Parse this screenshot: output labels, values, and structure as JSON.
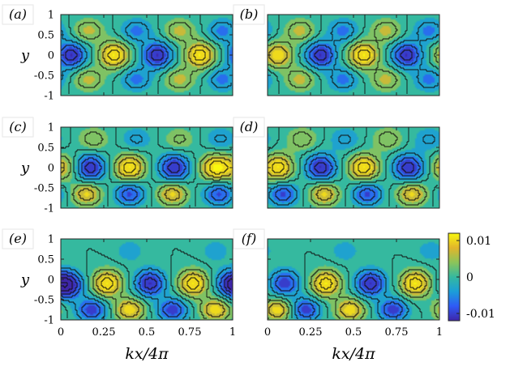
{
  "figure": {
    "colorbar": {
      "max_label": "0.01",
      "mid_label": "0",
      "min_label": "-0.01",
      "range": [
        -0.012,
        0.012
      ],
      "colormap": [
        "#3e26a8",
        "#2f5af6",
        "#1b9ed8",
        "#35b99f",
        "#8cc45a",
        "#e2b52b",
        "#f9f80f"
      ]
    },
    "contour_line_color": "#111111"
  },
  "chart_data": [
    {
      "type": "heatmap",
      "panel_label": "(a)",
      "xlabel": "",
      "ylabel": "y",
      "xlim": [
        0,
        1
      ],
      "ylim": [
        -1,
        1
      ],
      "yticks": [
        "1",
        "0.5",
        "0",
        "-0.5",
        "-1"
      ],
      "xticks": [],
      "description_of_pattern": "",
      "centers": [
        {
          "x": 0.06,
          "y": 0.0,
          "v": -0.012
        },
        {
          "x": 0.31,
          "y": 0.0,
          "v": 0.012
        },
        {
          "x": 0.56,
          "y": 0.0,
          "v": -0.012
        },
        {
          "x": 0.81,
          "y": 0.0,
          "v": 0.012
        },
        {
          "x": 0.16,
          "y": 0.6,
          "v": 0.006
        },
        {
          "x": 0.44,
          "y": 0.6,
          "v": -0.006
        },
        {
          "x": 0.69,
          "y": 0.6,
          "v": 0.006
        },
        {
          "x": 0.94,
          "y": 0.6,
          "v": -0.006
        },
        {
          "x": 0.16,
          "y": -0.6,
          "v": 0.006
        },
        {
          "x": 0.44,
          "y": -0.6,
          "v": -0.006
        },
        {
          "x": 0.69,
          "y": -0.6,
          "v": 0.006
        },
        {
          "x": 0.94,
          "y": -0.6,
          "v": -0.006
        }
      ]
    },
    {
      "type": "heatmap",
      "panel_label": "(b)",
      "xlabel": "",
      "ylabel": "",
      "xlim": [
        0,
        1
      ],
      "ylim": [
        -1,
        1
      ],
      "yticks": [],
      "xticks": [],
      "centers": [
        {
          "x": 0.06,
          "y": 0.0,
          "v": 0.01
        },
        {
          "x": 0.31,
          "y": 0.0,
          "v": -0.012
        },
        {
          "x": 0.56,
          "y": 0.0,
          "v": 0.012
        },
        {
          "x": 0.81,
          "y": 0.0,
          "v": -0.012
        },
        {
          "x": 0.19,
          "y": 0.6,
          "v": 0.006
        },
        {
          "x": 0.44,
          "y": 0.6,
          "v": -0.006
        },
        {
          "x": 0.69,
          "y": 0.6,
          "v": 0.006
        },
        {
          "x": 0.94,
          "y": 0.6,
          "v": -0.006
        },
        {
          "x": 0.19,
          "y": -0.6,
          "v": 0.006
        },
        {
          "x": 0.44,
          "y": -0.6,
          "v": -0.006
        },
        {
          "x": 0.69,
          "y": -0.6,
          "v": 0.006
        },
        {
          "x": 0.94,
          "y": -0.6,
          "v": -0.006
        }
      ]
    },
    {
      "type": "heatmap",
      "panel_label": "(c)",
      "xlabel": "",
      "ylabel": "y",
      "xlim": [
        0,
        1
      ],
      "ylim": [
        -1,
        1
      ],
      "yticks": [
        "1",
        "0.5",
        "0",
        "-0.5",
        "-1"
      ],
      "xticks": [],
      "centers": [
        {
          "x": 0.02,
          "y": 0.0,
          "v": 0.006
        },
        {
          "x": 0.17,
          "y": 0.0,
          "v": -0.012
        },
        {
          "x": 0.4,
          "y": 0.0,
          "v": 0.012
        },
        {
          "x": 0.66,
          "y": 0.0,
          "v": -0.012
        },
        {
          "x": 0.9,
          "y": 0.0,
          "v": 0.012
        },
        {
          "x": 0.19,
          "y": 0.7,
          "v": 0.005
        },
        {
          "x": 0.44,
          "y": 0.7,
          "v": -0.004
        },
        {
          "x": 0.69,
          "y": 0.7,
          "v": 0.004
        },
        {
          "x": 0.93,
          "y": 0.7,
          "v": -0.004
        },
        {
          "x": 0.15,
          "y": -0.65,
          "v": 0.009
        },
        {
          "x": 0.4,
          "y": -0.65,
          "v": -0.009
        },
        {
          "x": 0.65,
          "y": -0.65,
          "v": 0.009
        },
        {
          "x": 0.92,
          "y": -0.65,
          "v": -0.009
        }
      ]
    },
    {
      "type": "heatmap",
      "panel_label": "(d)",
      "xlabel": "",
      "ylabel": "",
      "xlim": [
        0,
        1
      ],
      "ylim": [
        -1,
        1
      ],
      "yticks": [],
      "xticks": [],
      "centers": [
        {
          "x": 0.06,
          "y": 0.0,
          "v": 0.012
        },
        {
          "x": 0.31,
          "y": 0.0,
          "v": -0.012
        },
        {
          "x": 0.56,
          "y": 0.0,
          "v": 0.012
        },
        {
          "x": 0.82,
          "y": 0.0,
          "v": -0.012
        },
        {
          "x": 0.2,
          "y": 0.7,
          "v": 0.005
        },
        {
          "x": 0.45,
          "y": 0.7,
          "v": -0.004
        },
        {
          "x": 0.7,
          "y": 0.7,
          "v": 0.005
        },
        {
          "x": 0.94,
          "y": 0.7,
          "v": -0.004
        },
        {
          "x": 0.09,
          "y": -0.65,
          "v": -0.009
        },
        {
          "x": 0.33,
          "y": -0.65,
          "v": 0.009
        },
        {
          "x": 0.58,
          "y": -0.65,
          "v": -0.009
        },
        {
          "x": 0.84,
          "y": -0.65,
          "v": 0.009
        }
      ]
    },
    {
      "type": "heatmap",
      "panel_label": "(e)",
      "xlabel": "kx/4π",
      "ylabel": "y",
      "xlim": [
        0,
        1
      ],
      "ylim": [
        -1,
        1
      ],
      "yticks": [
        "1",
        "0.5",
        "0",
        "-0.5",
        "-1"
      ],
      "xticks": [
        "0",
        "0.25",
        "0.5",
        "0.75",
        "1"
      ],
      "centers": [
        {
          "x": 0.05,
          "y": -0.15,
          "v": -0.01
        },
        {
          "x": 0.27,
          "y": -0.1,
          "v": 0.012
        },
        {
          "x": 0.52,
          "y": -0.1,
          "v": -0.012
        },
        {
          "x": 0.77,
          "y": -0.1,
          "v": 0.012
        },
        {
          "x": 0.99,
          "y": -0.1,
          "v": -0.01
        },
        {
          "x": 0.18,
          "y": -0.75,
          "v": -0.01
        },
        {
          "x": 0.4,
          "y": -0.75,
          "v": 0.01
        },
        {
          "x": 0.65,
          "y": -0.75,
          "v": -0.01
        },
        {
          "x": 0.9,
          "y": -0.75,
          "v": 0.01
        },
        {
          "x": 0.4,
          "y": 0.7,
          "v": -0.003
        },
        {
          "x": 0.9,
          "y": 0.7,
          "v": -0.003
        }
      ]
    },
    {
      "type": "heatmap",
      "panel_label": "(f)",
      "xlabel": "kx/4π",
      "ylabel": "",
      "xlim": [
        0,
        1
      ],
      "ylim": [
        -1,
        1
      ],
      "yticks": [],
      "xticks": [
        "0",
        "0.25",
        "0.5",
        "0.75",
        "1"
      ],
      "centers": [
        {
          "x": 0.1,
          "y": -0.1,
          "v": -0.01
        },
        {
          "x": 0.34,
          "y": -0.1,
          "v": 0.012
        },
        {
          "x": 0.6,
          "y": -0.1,
          "v": -0.012
        },
        {
          "x": 0.86,
          "y": -0.1,
          "v": 0.012
        },
        {
          "x": 0.06,
          "y": -0.75,
          "v": 0.01
        },
        {
          "x": 0.22,
          "y": -0.75,
          "v": -0.01
        },
        {
          "x": 0.48,
          "y": -0.75,
          "v": 0.01
        },
        {
          "x": 0.73,
          "y": -0.75,
          "v": -0.01
        },
        {
          "x": 0.45,
          "y": 0.7,
          "v": -0.003
        },
        {
          "x": 0.95,
          "y": 0.7,
          "v": -0.003
        }
      ]
    }
  ]
}
